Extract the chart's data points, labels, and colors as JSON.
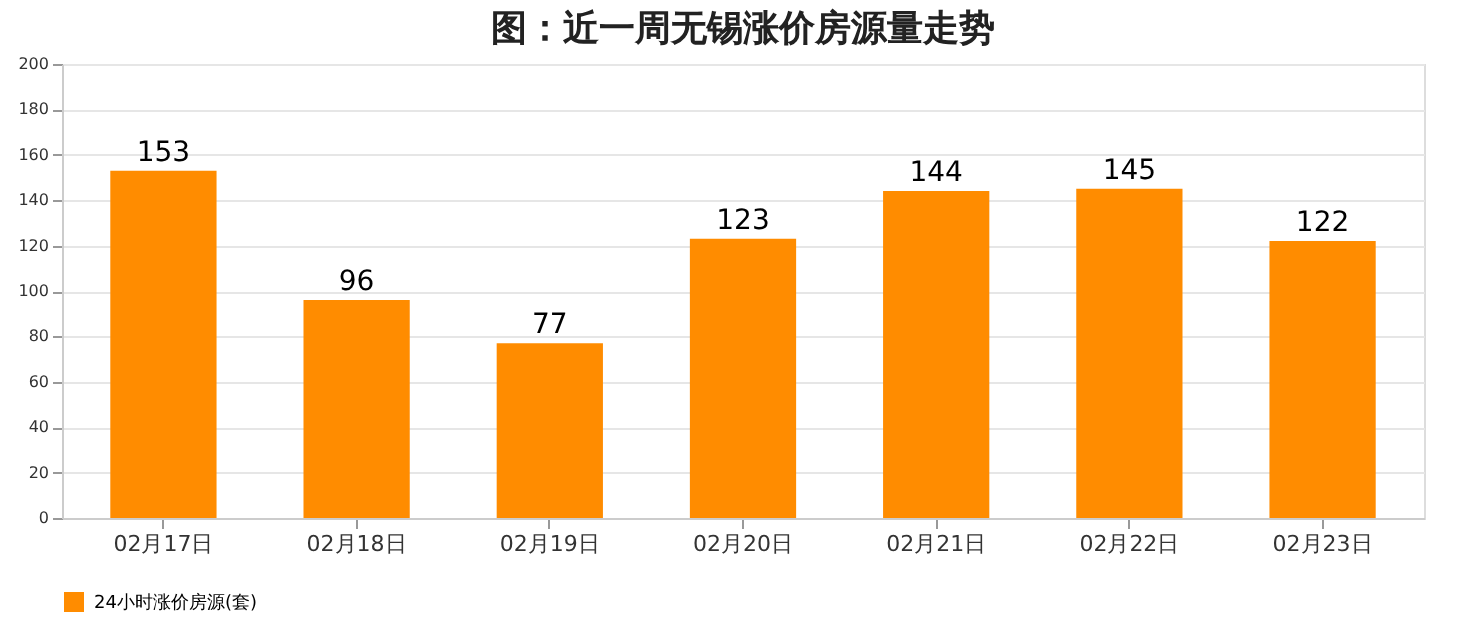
{
  "chart_data": {
    "type": "bar",
    "title": "图：近一周无锡涨价房源量走势",
    "categories": [
      "02月17日",
      "02月18日",
      "02月19日",
      "02月20日",
      "02月21日",
      "02月22日",
      "02月23日"
    ],
    "series": [
      {
        "name": "24小时涨价房源(套)",
        "color": "#ff8c00",
        "values": [
          153,
          96,
          77,
          123,
          144,
          145,
          122
        ]
      }
    ],
    "ylim": [
      0,
      200
    ],
    "yticks": [
      0,
      20,
      40,
      60,
      80,
      100,
      120,
      140,
      160,
      180,
      200
    ],
    "grid": "y",
    "legend": "bottom",
    "data_labels": true
  }
}
